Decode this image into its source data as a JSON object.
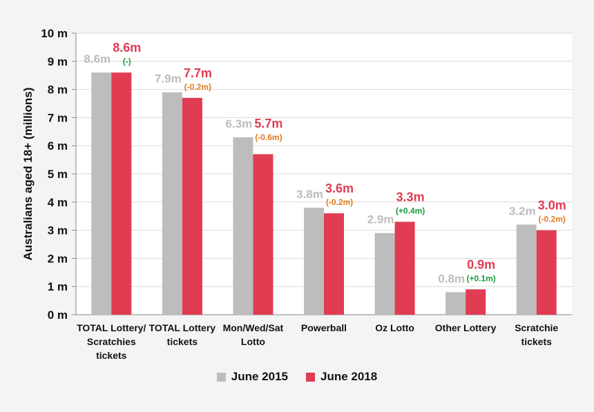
{
  "chart_data": {
    "type": "bar",
    "ylabel": "Australians aged 18+ (millions)",
    "ylim": [
      0,
      10
    ],
    "yticks": [
      "0 m",
      "1 m",
      "2 m",
      "3 m",
      "4 m",
      "5 m",
      "6 m",
      "7 m",
      "8 m",
      "9 m",
      "10 m"
    ],
    "grid": true,
    "legend_position": "bottom",
    "categories": [
      [
        "TOTAL Lottery/",
        "Scratchies",
        "tickets"
      ],
      [
        "TOTAL Lottery",
        "tickets"
      ],
      [
        "Mon/Wed/Sat",
        "Lotto"
      ],
      [
        "Powerball"
      ],
      [
        "Oz Lotto"
      ],
      [
        "Other Lottery"
      ],
      [
        "Scratchie",
        "tickets"
      ]
    ],
    "series": [
      {
        "name": "June 2015",
        "color": "#bdbdbd",
        "values": [
          8.6,
          7.9,
          6.3,
          3.8,
          2.9,
          0.8,
          3.2
        ],
        "labels": [
          "8.6m",
          "7.9m",
          "6.3m",
          "3.8m",
          "2.9m",
          "0.8m",
          "3.2m"
        ]
      },
      {
        "name": "June 2018",
        "color": "#e03c52",
        "values": [
          8.6,
          7.7,
          5.7,
          3.6,
          3.3,
          0.9,
          3.0
        ],
        "labels": [
          "8.6m",
          "7.7m",
          "5.7m",
          "3.6m",
          "3.3m",
          "0.9m",
          "3.0m"
        ]
      }
    ],
    "changes": [
      {
        "text": "(-)",
        "color": "#1a9a3f"
      },
      {
        "text": "(-0.2m)",
        "color": "#e07a20"
      },
      {
        "text": "(-0.6m)",
        "color": "#e07a20"
      },
      {
        "text": "(-0.2m)",
        "color": "#e07a20"
      },
      {
        "text": "(+0.4m)",
        "color": "#1a9a3f"
      },
      {
        "text": "(+0.1m)",
        "color": "#1a9a3f"
      },
      {
        "text": "(-0.2m)",
        "color": "#e07a20"
      }
    ]
  }
}
